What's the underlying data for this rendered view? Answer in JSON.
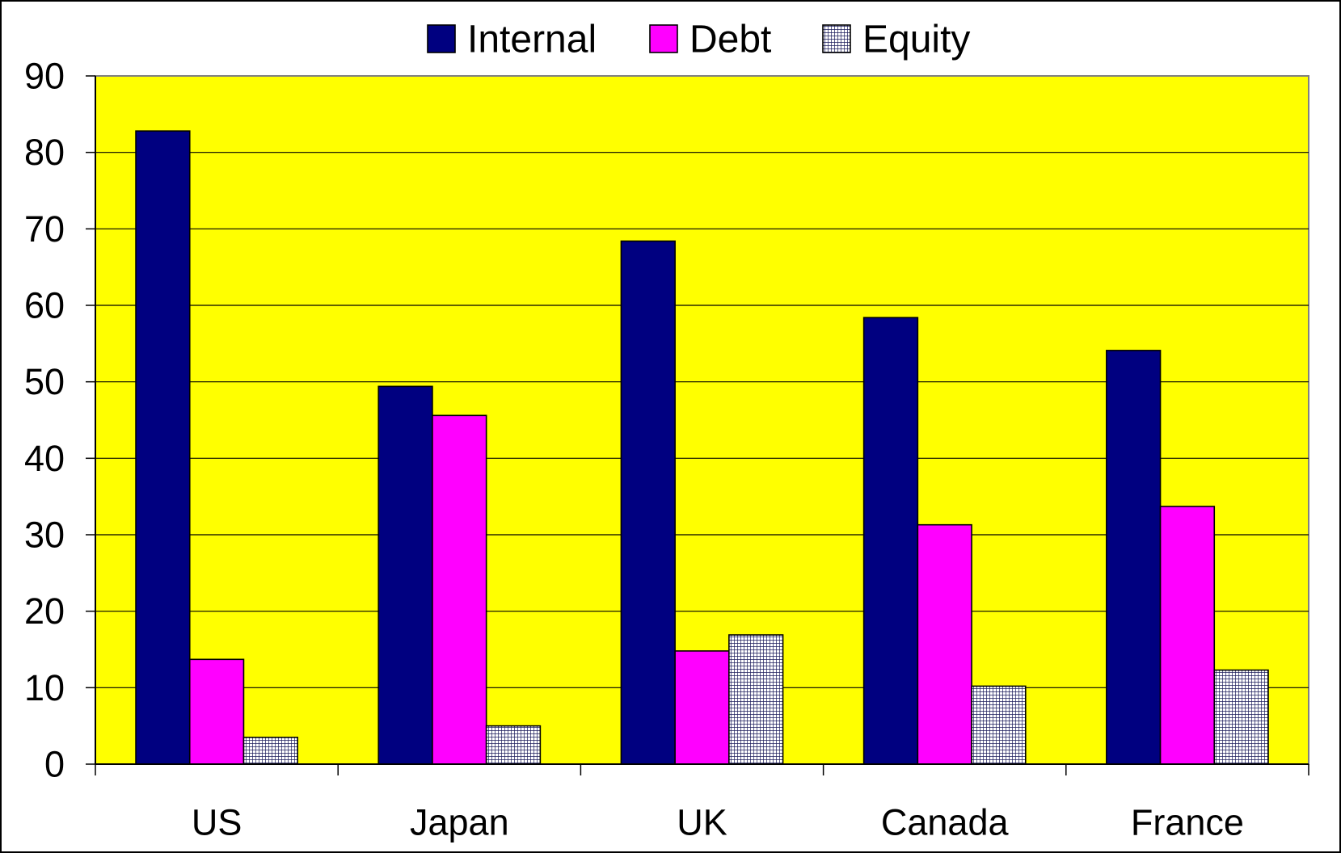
{
  "chart_data": {
    "type": "bar",
    "categories": [
      "US",
      "Japan",
      "UK",
      "Canada",
      "France"
    ],
    "series": [
      {
        "name": "Internal",
        "values": [
          82.8,
          49.4,
          68.4,
          58.4,
          54.1
        ],
        "color": "#000080"
      },
      {
        "name": "Debt",
        "values": [
          13.7,
          45.6,
          14.8,
          31.3,
          33.7
        ],
        "color": "#FF00FF"
      },
      {
        "name": "Equity",
        "values": [
          3.5,
          5.0,
          16.9,
          10.2,
          12.3
        ],
        "color": "#1C1C5C",
        "hatched": true
      }
    ],
    "ylim": [
      0,
      90
    ],
    "yticks": [
      0,
      10,
      20,
      30,
      40,
      50,
      60,
      70,
      80,
      90
    ],
    "grid": true,
    "legend": "top",
    "plot_background": "#FFFF00"
  }
}
